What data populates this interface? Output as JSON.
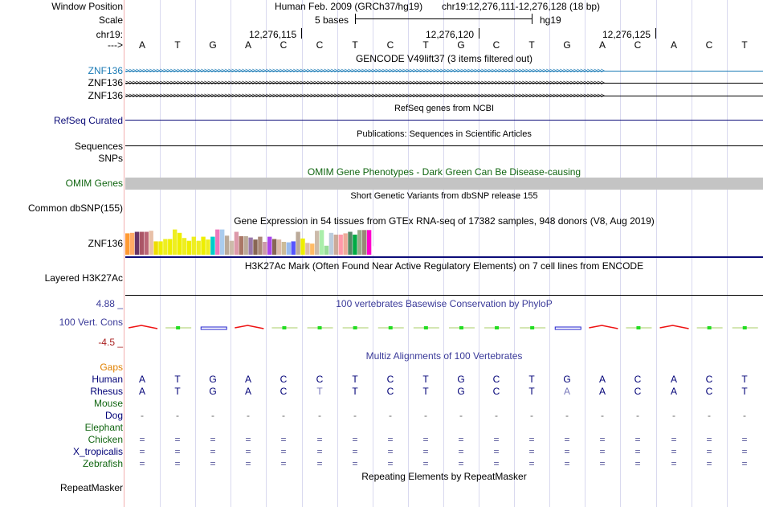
{
  "header": {
    "window_position_label": "Window Position",
    "scale_label": "Scale",
    "chrom_label": "chr19:",
    "strand_label": "--->",
    "assembly_text": "Human Feb. 2009 (GRCh37/hg19)",
    "position_text": "chr19:12,276,111-12,276,128 (18 bp)",
    "scale_bases": "5 bases",
    "scale_db": "hg19",
    "ticks": [
      "12,276,115",
      "12,276,120",
      "12,276,125"
    ]
  },
  "sequence": [
    "A",
    "T",
    "G",
    "A",
    "C",
    "C",
    "T",
    "C",
    "T",
    "G",
    "C",
    "T",
    "G",
    "A",
    "C",
    "A",
    "C",
    "T"
  ],
  "gencode": {
    "title": "GENCODE V49lift37 (3 items filtered out)",
    "genes": [
      "ZNF136",
      "ZNF136",
      "ZNF136"
    ]
  },
  "refseq": {
    "title": "RefSeq genes from NCBI",
    "label": "RefSeq Curated"
  },
  "publications": {
    "title": "Publications: Sequences in Scientific Articles",
    "label": "Sequences"
  },
  "snps": {
    "label": "SNPs"
  },
  "omim": {
    "title": "OMIM Gene Phenotypes - Dark Green Can Be Disease-causing",
    "label": "OMIM Genes"
  },
  "dbsnp": {
    "title": "Short Genetic Variants from dbSNP release 155",
    "label": "Common dbSNP(155)"
  },
  "gtex": {
    "title": "Gene Expression in 54 tissues from GTEx RNA-seq of 17382 samples, 948 donors (V8, Aug 2019)",
    "label": "ZNF136",
    "levels": [
      0.83,
      0.85,
      0.89,
      0.89,
      0.89,
      0.93,
      0.52,
      0.52,
      0.61,
      0.61,
      0.98,
      0.85,
      0.65,
      0.54,
      0.7,
      0.54,
      0.7,
      0.59,
      0.7,
      0.98,
      0.98,
      0.74,
      0.54,
      0.89,
      0.72,
      0.72,
      0.67,
      0.59,
      0.7,
      0.5,
      0.7,
      0.61,
      0.59,
      0.5,
      0.48,
      0.52,
      0.89,
      0.63,
      0.46,
      0.43,
      0.93,
      0.96,
      0.35,
      0.85,
      0.78,
      0.78,
      0.83,
      0.89,
      0.78,
      0.96,
      0.96,
      0.96,
      0.33,
      0.33
    ],
    "colors": [
      "#ff9933",
      "#ffaa66",
      "#663366",
      "#aa5566",
      "#bb6677",
      "#e8c0a8",
      "#eedd00",
      "#eeee00",
      "#eeee22",
      "#eeee00",
      "#eeee22",
      "#eeee00",
      "#eeee22",
      "#eeee00",
      "#eeee22",
      "#eeee22",
      "#eeee00",
      "#eeee22",
      "#00cccc",
      "#ee77bb",
      "#aaccee",
      "#bbaa99",
      "#ccbbaa",
      "#dd99aa",
      "#aa7766",
      "#bbaa99",
      "#9977aa",
      "#886655",
      "#aa8877",
      "#cc99aa",
      "#aa44ee",
      "#886655",
      "#ddbbaa",
      "#ccbb99",
      "#99bbee",
      "#5555ff",
      "#bbaa99",
      "#eeee00",
      "#ddbbaa",
      "#ffbb66",
      "#ccbbaa",
      "#aaeeaa",
      "#99dd99",
      "#bbccdd",
      "#ccaa99",
      "#ff99aa",
      "#eeaa99",
      "#558866",
      "#00aa44",
      "#99aa88",
      "#998877",
      "#ff00cc",
      "#ffffff",
      "#ffffff"
    ]
  },
  "h3k27ac": {
    "title": "H3K27Ac Mark (Often Found Near Active Regulatory Elements) on 7 cell lines from ENCODE",
    "label": "Layered H3K27Ac"
  },
  "cons": {
    "title": "100 vertebrates Basewise Conservation by PhyloP",
    "label": "100 Vert. Cons",
    "max": "4.88 _",
    "min": "-4.5 _",
    "colors": {
      "pos": "#ee1111",
      "neg": "#2222cc",
      "green": "#22dd22"
    }
  },
  "multiz": {
    "title": "Multiz Alignments of 100 Vertebrates",
    "gaps_label": "Gaps",
    "species": [
      {
        "name": "Human",
        "color": "#000077",
        "bases": [
          "A",
          "T",
          "G",
          "A",
          "C",
          "C",
          "T",
          "C",
          "T",
          "G",
          "C",
          "T",
          "G",
          "A",
          "C",
          "A",
          "C",
          "T"
        ]
      },
      {
        "name": "Rhesus",
        "color": "#000077",
        "bases": [
          "A",
          "T",
          "G",
          "A",
          "C",
          "T",
          "T",
          "C",
          "T",
          "G",
          "C",
          "T",
          "A",
          "A",
          "C",
          "A",
          "C",
          "T"
        ]
      },
      {
        "name": "Mouse",
        "color": "#116611",
        "bases": []
      },
      {
        "name": "Dog",
        "color": "#000077",
        "bases": [
          "-",
          "-",
          "-",
          "-",
          "-",
          "-",
          "-",
          "-",
          "-",
          "-",
          "-",
          "-",
          "-",
          "-",
          "-",
          "-",
          "-",
          "-"
        ]
      },
      {
        "name": "Elephant",
        "color": "#116611",
        "bases": []
      },
      {
        "name": "Chicken",
        "color": "#116611",
        "bases": [
          "=",
          "=",
          "=",
          "=",
          "=",
          "=",
          "=",
          "=",
          "=",
          "=",
          "=",
          "=",
          "=",
          "=",
          "=",
          "=",
          "=",
          "="
        ]
      },
      {
        "name": "X_tropicalis",
        "color": "#000077",
        "bases": [
          "=",
          "=",
          "=",
          "=",
          "=",
          "=",
          "=",
          "=",
          "=",
          "=",
          "=",
          "=",
          "=",
          "=",
          "=",
          "=",
          "=",
          "="
        ]
      },
      {
        "name": "Zebrafish",
        "color": "#116611",
        "bases": [
          "=",
          "=",
          "=",
          "=",
          "=",
          "=",
          "=",
          "=",
          "=",
          "=",
          "=",
          "=",
          "=",
          "=",
          "=",
          "=",
          "=",
          "="
        ]
      }
    ]
  },
  "repeatmasker": {
    "title": "Repeating Elements by RepeatMasker",
    "label": "RepeatMasker"
  },
  "colors": {
    "gencode_blue": "#1a7ab5",
    "refseq_navy": "#0c0c78",
    "omim_green": "#116611",
    "cons_blue": "#3a3a99",
    "gaps_orange": "#e08000",
    "omim_bar": "#c4c4c4",
    "label_navy": "#000077"
  }
}
